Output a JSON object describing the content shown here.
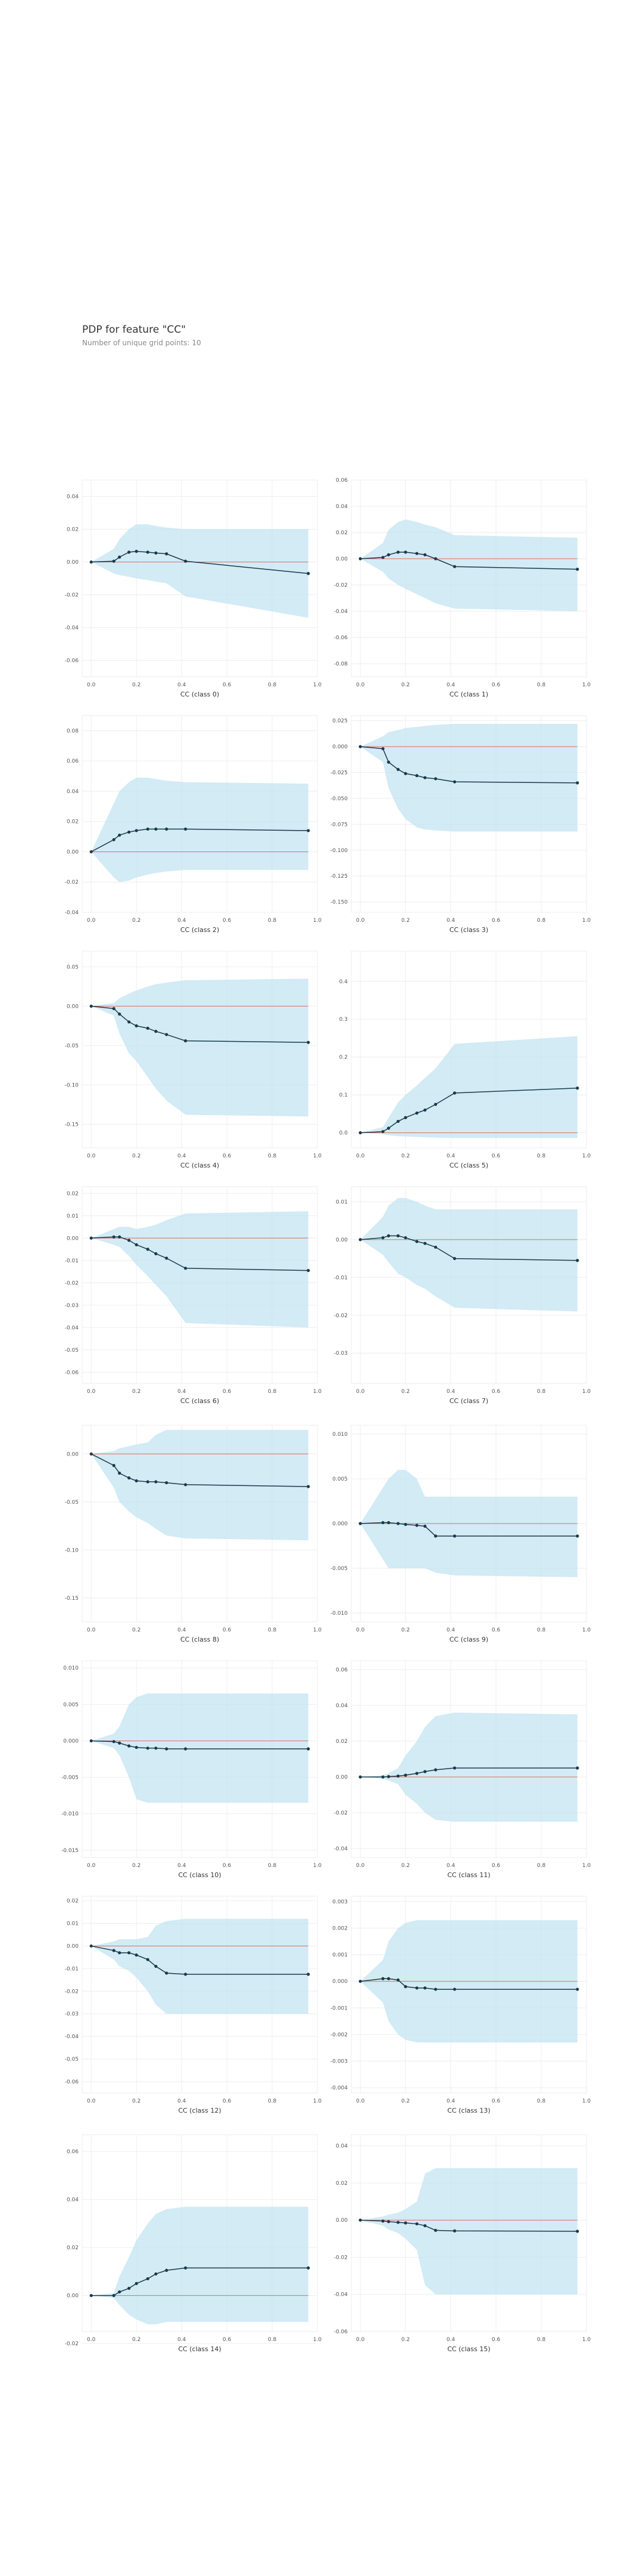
{
  "title": "PDP for feature \"CC\"",
  "subtitle": "Number of unique grid points: 10",
  "colors": {
    "band": "#bfe3f1",
    "line": "#1a3a4a",
    "zero": "#e06c5b",
    "grid": "#eeeeee"
  },
  "chart_data": [
    {
      "type": "line",
      "xlabel": "CC (class 0)",
      "ylim": [
        -0.07,
        0.05
      ],
      "xticks": [
        "0.0",
        "0.2",
        "0.4",
        "0.6",
        "0.8",
        "1.0"
      ],
      "yticks": [
        "0.04",
        "0.02",
        "0.00",
        "-0.02",
        "-0.04",
        "-0.06"
      ],
      "x": [
        0.0,
        0.1,
        0.125,
        0.167,
        0.2,
        0.25,
        0.286,
        0.333,
        0.417,
        0.96
      ],
      "y": [
        0.0,
        0.0005,
        0.003,
        0.006,
        0.0065,
        0.006,
        0.0055,
        0.005,
        0.0005,
        -0.007
      ],
      "upper": [
        0.0,
        0.008,
        0.014,
        0.02,
        0.023,
        0.023,
        0.022,
        0.021,
        0.02,
        0.02
      ],
      "lower": [
        0.0,
        -0.007,
        -0.008,
        -0.009,
        -0.01,
        -0.011,
        -0.012,
        -0.013,
        -0.021,
        -0.034
      ]
    },
    {
      "type": "line",
      "xlabel": "CC (class 1)",
      "ylim": [
        -0.09,
        0.06
      ],
      "xticks": [
        "0.0",
        "0.2",
        "0.4",
        "0.6",
        "0.8",
        "1.0"
      ],
      "yticks": [
        "0.06",
        "0.04",
        "0.02",
        "0.00",
        "-0.02",
        "-0.04",
        "-0.06",
        "-0.08"
      ],
      "x": [
        0.0,
        0.1,
        0.125,
        0.167,
        0.2,
        0.25,
        0.286,
        0.333,
        0.417,
        0.96
      ],
      "y": [
        0.0,
        0.001,
        0.003,
        0.005,
        0.005,
        0.004,
        0.003,
        0.0,
        -0.006,
        -0.008
      ],
      "upper": [
        0.0,
        0.012,
        0.022,
        0.028,
        0.03,
        0.028,
        0.026,
        0.024,
        0.018,
        0.016
      ],
      "lower": [
        0.0,
        -0.01,
        -0.015,
        -0.02,
        -0.023,
        -0.027,
        -0.03,
        -0.034,
        -0.038,
        -0.04
      ]
    },
    {
      "type": "line",
      "xlabel": "CC (class 2)",
      "ylim": [
        -0.04,
        0.09
      ],
      "xticks": [
        "0.0",
        "0.2",
        "0.4",
        "0.6",
        "0.8",
        "1.0"
      ],
      "yticks": [
        "0.08",
        "0.06",
        "0.04",
        "0.02",
        "0.00",
        "-0.02",
        "-0.04"
      ],
      "x": [
        0.0,
        0.1,
        0.125,
        0.167,
        0.2,
        0.25,
        0.286,
        0.333,
        0.417,
        0.96
      ],
      "y": [
        0.0,
        0.008,
        0.011,
        0.013,
        0.014,
        0.015,
        0.015,
        0.015,
        0.015,
        0.014
      ],
      "upper": [
        0.0,
        0.032,
        0.04,
        0.046,
        0.049,
        0.049,
        0.048,
        0.047,
        0.046,
        0.045
      ],
      "lower": [
        0.0,
        -0.017,
        -0.02,
        -0.019,
        -0.017,
        -0.015,
        -0.014,
        -0.013,
        -0.012,
        -0.012
      ]
    },
    {
      "type": "line",
      "xlabel": "CC (class 3)",
      "ylim": [
        -0.16,
        0.03
      ],
      "xticks": [
        "0.0",
        "0.2",
        "0.4",
        "0.6",
        "0.8",
        "1.0"
      ],
      "yticks": [
        "0.025",
        "0.000",
        "-0.025",
        "-0.050",
        "-0.075",
        "-0.100",
        "-0.125",
        "-0.150"
      ],
      "x": [
        0.0,
        0.1,
        0.125,
        0.167,
        0.2,
        0.25,
        0.286,
        0.333,
        0.417,
        0.96
      ],
      "y": [
        0.0,
        -0.002,
        -0.015,
        -0.022,
        -0.026,
        -0.028,
        -0.03,
        -0.031,
        -0.034,
        -0.035
      ],
      "upper": [
        0.0,
        0.01,
        0.014,
        0.016,
        0.018,
        0.019,
        0.02,
        0.021,
        0.022,
        0.022
      ],
      "lower": [
        0.0,
        -0.015,
        -0.04,
        -0.06,
        -0.07,
        -0.078,
        -0.08,
        -0.081,
        -0.082,
        -0.082
      ]
    },
    {
      "type": "line",
      "xlabel": "CC (class 4)",
      "ylim": [
        -0.18,
        0.07
      ],
      "xticks": [
        "0.0",
        "0.2",
        "0.4",
        "0.6",
        "0.8",
        "1.0"
      ],
      "yticks": [
        "0.05",
        "0.00",
        "-0.05",
        "-0.10",
        "-0.15"
      ],
      "x": [
        0.0,
        0.1,
        0.125,
        0.167,
        0.2,
        0.25,
        0.286,
        0.333,
        0.417,
        0.96
      ],
      "y": [
        0.0,
        -0.003,
        -0.01,
        -0.02,
        -0.025,
        -0.028,
        -0.032,
        -0.036,
        -0.044,
        -0.046
      ],
      "upper": [
        0.0,
        0.004,
        0.01,
        0.016,
        0.02,
        0.025,
        0.028,
        0.03,
        0.033,
        0.035
      ],
      "lower": [
        0.0,
        -0.012,
        -0.035,
        -0.06,
        -0.07,
        -0.09,
        -0.105,
        -0.12,
        -0.138,
        -0.14
      ]
    },
    {
      "type": "line",
      "xlabel": "CC (class 5)",
      "ylim": [
        -0.04,
        0.48
      ],
      "xticks": [
        "0.0",
        "0.2",
        "0.4",
        "0.6",
        "0.8",
        "1.0"
      ],
      "yticks": [
        "0.4",
        "0.3",
        "0.2",
        "0.1",
        "0.0"
      ],
      "x": [
        0.0,
        0.1,
        0.125,
        0.167,
        0.2,
        0.25,
        0.286,
        0.333,
        0.417,
        0.96
      ],
      "y": [
        0.0,
        0.003,
        0.012,
        0.03,
        0.04,
        0.052,
        0.06,
        0.075,
        0.105,
        0.118
      ],
      "upper": [
        0.0,
        0.015,
        0.04,
        0.08,
        0.1,
        0.125,
        0.145,
        0.17,
        0.235,
        0.255
      ],
      "lower": [
        0.0,
        -0.004,
        -0.007,
        -0.009,
        -0.01,
        -0.011,
        -0.012,
        -0.013,
        -0.014,
        -0.014
      ]
    },
    {
      "type": "line",
      "xlabel": "CC (class 6)",
      "ylim": [
        -0.065,
        0.023
      ],
      "xticks": [
        "0.0",
        "0.2",
        "0.4",
        "0.6",
        "0.8",
        "1.0"
      ],
      "yticks": [
        "0.02",
        "0.01",
        "0.00",
        "-0.01",
        "-0.02",
        "-0.03",
        "-0.04",
        "-0.05",
        "-0.06"
      ],
      "x": [
        0.0,
        0.1,
        0.125,
        0.167,
        0.2,
        0.25,
        0.286,
        0.333,
        0.417,
        0.96
      ],
      "y": [
        0.0,
        0.0005,
        0.0005,
        -0.001,
        -0.003,
        -0.005,
        -0.007,
        -0.009,
        -0.0135,
        -0.0145
      ],
      "upper": [
        0.0,
        0.004,
        0.005,
        0.005,
        0.004,
        0.005,
        0.006,
        0.008,
        0.011,
        0.012
      ],
      "lower": [
        0.0,
        -0.003,
        -0.004,
        -0.008,
        -0.012,
        -0.017,
        -0.021,
        -0.026,
        -0.038,
        -0.04
      ]
    },
    {
      "type": "line",
      "xlabel": "CC (class 7)",
      "ylim": [
        -0.038,
        0.014
      ],
      "xticks": [
        "0.0",
        "0.2",
        "0.4",
        "0.6",
        "0.8",
        "1.0"
      ],
      "yticks": [
        "0.01",
        "0.00",
        "-0.01",
        "-0.02",
        "-0.03"
      ],
      "x": [
        0.0,
        0.1,
        0.125,
        0.167,
        0.2,
        0.25,
        0.286,
        0.333,
        0.417,
        0.96
      ],
      "y": [
        0.0,
        0.0005,
        0.001,
        0.001,
        0.0005,
        -0.0005,
        -0.001,
        -0.002,
        -0.005,
        -0.0055
      ],
      "upper": [
        0.0,
        0.006,
        0.009,
        0.011,
        0.011,
        0.01,
        0.009,
        0.008,
        0.008,
        0.008
      ],
      "lower": [
        0.0,
        -0.004,
        -0.006,
        -0.009,
        -0.01,
        -0.012,
        -0.013,
        -0.015,
        -0.018,
        -0.019
      ]
    },
    {
      "type": "line",
      "xlabel": "CC (class 8)",
      "ylim": [
        -0.175,
        0.03
      ],
      "xticks": [
        "0.0",
        "0.2",
        "0.4",
        "0.6",
        "0.8",
        "1.0"
      ],
      "yticks": [
        "0.00",
        "-0.05",
        "-0.10",
        "-0.15"
      ],
      "x": [
        0.0,
        0.1,
        0.125,
        0.167,
        0.2,
        0.25,
        0.286,
        0.333,
        0.417,
        0.96
      ],
      "y": [
        0.0,
        -0.012,
        -0.02,
        -0.025,
        -0.028,
        -0.029,
        -0.029,
        -0.03,
        -0.032,
        -0.034
      ],
      "upper": [
        0.0,
        0.003,
        0.006,
        0.008,
        0.01,
        0.012,
        0.02,
        0.025,
        0.025,
        0.025
      ],
      "lower": [
        0.0,
        -0.035,
        -0.05,
        -0.06,
        -0.066,
        -0.072,
        -0.078,
        -0.085,
        -0.088,
        -0.09
      ]
    },
    {
      "type": "line",
      "xlabel": "CC (class 9)",
      "ylim": [
        -0.011,
        0.011
      ],
      "xticks": [
        "0.0",
        "0.2",
        "0.4",
        "0.6",
        "0.8",
        "1.0"
      ],
      "yticks": [
        "0.010",
        "0.005",
        "0.000",
        "-0.005",
        "-0.010"
      ],
      "x": [
        0.0,
        0.1,
        0.125,
        0.167,
        0.2,
        0.25,
        0.286,
        0.333,
        0.417,
        0.96
      ],
      "y": [
        0.0,
        0.0001,
        0.0001,
        0.0,
        -0.0001,
        -0.0002,
        -0.0003,
        -0.0014,
        -0.0014,
        -0.0014
      ],
      "upper": [
        0.0,
        0.004,
        0.005,
        0.006,
        0.006,
        0.005,
        0.003,
        0.003,
        0.003,
        0.003
      ],
      "lower": [
        0.0,
        -0.004,
        -0.005,
        -0.005,
        -0.005,
        -0.005,
        -0.005,
        -0.0055,
        -0.0058,
        -0.006
      ]
    },
    {
      "type": "line",
      "xlabel": "CC (class 10)",
      "ylim": [
        -0.016,
        0.011
      ],
      "xticks": [
        "0.0",
        "0.2",
        "0.4",
        "0.6",
        "0.8",
        "1.0"
      ],
      "yticks": [
        "0.010",
        "0.005",
        "0.000",
        "-0.005",
        "-0.010",
        "-0.015"
      ],
      "x": [
        0.0,
        0.1,
        0.125,
        0.167,
        0.2,
        0.25,
        0.286,
        0.333,
        0.417,
        0.96
      ],
      "y": [
        0.0,
        -0.0001,
        -0.0003,
        -0.0007,
        -0.0009,
        -0.001,
        -0.001,
        -0.0011,
        -0.0011,
        -0.0011
      ],
      "upper": [
        0.0,
        0.001,
        0.002,
        0.005,
        0.006,
        0.0065,
        0.0065,
        0.0065,
        0.0065,
        0.0065
      ],
      "lower": [
        0.0,
        -0.001,
        -0.002,
        -0.005,
        -0.008,
        -0.0085,
        -0.0085,
        -0.0085,
        -0.0085,
        -0.0085
      ]
    },
    {
      "type": "line",
      "xlabel": "CC (class 11)",
      "ylim": [
        -0.045,
        0.065
      ],
      "xticks": [
        "0.0",
        "0.2",
        "0.4",
        "0.6",
        "0.8",
        "1.0"
      ],
      "yticks": [
        "0.06",
        "0.04",
        "0.02",
        "0.00",
        "-0.02",
        "-0.04"
      ],
      "x": [
        0.0,
        0.1,
        0.125,
        0.167,
        0.2,
        0.25,
        0.286,
        0.333,
        0.417,
        0.96
      ],
      "y": [
        0.0,
        0.0,
        0.0002,
        0.0005,
        0.001,
        0.002,
        0.003,
        0.004,
        0.005,
        0.005
      ],
      "upper": [
        0.0,
        0.001,
        0.002,
        0.005,
        0.012,
        0.02,
        0.028,
        0.034,
        0.036,
        0.035
      ],
      "lower": [
        0.0,
        -0.001,
        -0.002,
        -0.004,
        -0.01,
        -0.015,
        -0.02,
        -0.024,
        -0.025,
        -0.025
      ]
    },
    {
      "type": "line",
      "xlabel": "CC (class 12)",
      "ylim": [
        -0.065,
        0.022
      ],
      "xticks": [
        "0.0",
        "0.2",
        "0.4",
        "0.6",
        "0.8",
        "1.0"
      ],
      "yticks": [
        "0.02",
        "0.01",
        "0.00",
        "-0.01",
        "-0.02",
        "-0.03",
        "-0.04",
        "-0.05",
        "-0.06"
      ],
      "x": [
        0.0,
        0.1,
        0.125,
        0.167,
        0.2,
        0.25,
        0.286,
        0.333,
        0.417,
        0.96
      ],
      "y": [
        0.0,
        -0.002,
        -0.003,
        -0.003,
        -0.004,
        -0.006,
        -0.009,
        -0.012,
        -0.0125,
        -0.0125
      ],
      "upper": [
        0.0,
        0.002,
        0.003,
        0.003,
        0.003,
        0.004,
        0.009,
        0.011,
        0.012,
        0.012
      ],
      "lower": [
        0.0,
        -0.006,
        -0.009,
        -0.011,
        -0.014,
        -0.02,
        -0.026,
        -0.03,
        -0.03,
        -0.03
      ]
    },
    {
      "type": "line",
      "xlabel": "CC (class 13)",
      "ylim": [
        -0.0042,
        0.0032
      ],
      "xticks": [
        "0.0",
        "0.2",
        "0.4",
        "0.6",
        "0.8",
        "1.0"
      ],
      "yticks": [
        "0.003",
        "0.002",
        "0.001",
        "0.000",
        "-0.001",
        "-0.002",
        "-0.003",
        "-0.004"
      ],
      "x": [
        0.0,
        0.1,
        0.125,
        0.167,
        0.2,
        0.25,
        0.286,
        0.333,
        0.417,
        0.96
      ],
      "y": [
        0.0,
        0.0001,
        0.0001,
        5e-05,
        -0.0002,
        -0.00025,
        -0.00025,
        -0.0003,
        -0.0003,
        -0.0003
      ],
      "upper": [
        0.0,
        0.0008,
        0.0015,
        0.002,
        0.0022,
        0.0023,
        0.0023,
        0.0023,
        0.0023,
        0.0023
      ],
      "lower": [
        0.0,
        -0.0008,
        -0.0015,
        -0.002,
        -0.0022,
        -0.0023,
        -0.0023,
        -0.0023,
        -0.0023,
        -0.0023
      ]
    },
    {
      "type": "line",
      "xlabel": "CC (class 14)",
      "ylim": [
        -0.015,
        0.067
      ],
      "xticks": [
        "0.0",
        "0.2",
        "0.4",
        "0.6",
        "0.8",
        "1.0"
      ],
      "yticks": [
        "0.06",
        "0.04",
        "0.02",
        "0.00",
        "-0.02"
      ],
      "x": [
        0.0,
        0.1,
        0.125,
        0.167,
        0.2,
        0.25,
        0.286,
        0.333,
        0.417,
        0.96
      ],
      "y": [
        0.0,
        0.0,
        0.0015,
        0.003,
        0.005,
        0.007,
        0.009,
        0.0105,
        0.0115,
        0.0115
      ],
      "upper": [
        0.0,
        0.001,
        0.008,
        0.016,
        0.023,
        0.03,
        0.034,
        0.036,
        0.037,
        0.037
      ],
      "lower": [
        0.0,
        -0.001,
        -0.004,
        -0.008,
        -0.01,
        -0.012,
        -0.012,
        -0.011,
        -0.011,
        -0.011
      ]
    },
    {
      "type": "line",
      "xlabel": "CC (class 15)",
      "ylim": [
        -0.06,
        0.046
      ],
      "xticks": [
        "0.0",
        "0.2",
        "0.4",
        "0.6",
        "0.8",
        "1.0"
      ],
      "yticks": [
        "0.04",
        "0.02",
        "0.00",
        "-0.02",
        "-0.04",
        "-0.06"
      ],
      "x": [
        0.0,
        0.1,
        0.125,
        0.167,
        0.2,
        0.25,
        0.286,
        0.333,
        0.417,
        0.96
      ],
      "y": [
        0.0,
        -0.0005,
        -0.0008,
        -0.0012,
        -0.0015,
        -0.002,
        -0.003,
        -0.0055,
        -0.0058,
        -0.006
      ],
      "upper": [
        0.0,
        0.002,
        0.003,
        0.004,
        0.006,
        0.01,
        0.025,
        0.028,
        0.028,
        0.028
      ],
      "lower": [
        0.0,
        -0.003,
        -0.005,
        -0.007,
        -0.01,
        -0.016,
        -0.035,
        -0.04,
        -0.04,
        -0.04
      ]
    }
  ]
}
